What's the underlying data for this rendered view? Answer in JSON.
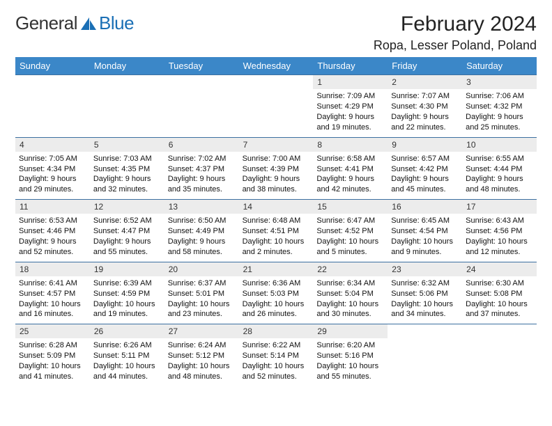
{
  "logo": {
    "text_general": "General",
    "text_blue": "Blue",
    "sail_color": "#1a6fb5"
  },
  "month_title": "February 2024",
  "location": "Ropa, Lesser Poland, Poland",
  "colors": {
    "header_bg": "#3b87c8",
    "daynum_bg": "#ececec",
    "rule": "#3b6fa0"
  },
  "day_names": [
    "Sunday",
    "Monday",
    "Tuesday",
    "Wednesday",
    "Thursday",
    "Friday",
    "Saturday"
  ],
  "weeks": [
    [
      {
        "empty": true
      },
      {
        "empty": true
      },
      {
        "empty": true
      },
      {
        "empty": true
      },
      {
        "day": "1",
        "sunrise": "Sunrise: 7:09 AM",
        "sunset": "Sunset: 4:29 PM",
        "daylight": "Daylight: 9 hours and 19 minutes."
      },
      {
        "day": "2",
        "sunrise": "Sunrise: 7:07 AM",
        "sunset": "Sunset: 4:30 PM",
        "daylight": "Daylight: 9 hours and 22 minutes."
      },
      {
        "day": "3",
        "sunrise": "Sunrise: 7:06 AM",
        "sunset": "Sunset: 4:32 PM",
        "daylight": "Daylight: 9 hours and 25 minutes."
      }
    ],
    [
      {
        "day": "4",
        "sunrise": "Sunrise: 7:05 AM",
        "sunset": "Sunset: 4:34 PM",
        "daylight": "Daylight: 9 hours and 29 minutes."
      },
      {
        "day": "5",
        "sunrise": "Sunrise: 7:03 AM",
        "sunset": "Sunset: 4:35 PM",
        "daylight": "Daylight: 9 hours and 32 minutes."
      },
      {
        "day": "6",
        "sunrise": "Sunrise: 7:02 AM",
        "sunset": "Sunset: 4:37 PM",
        "daylight": "Daylight: 9 hours and 35 minutes."
      },
      {
        "day": "7",
        "sunrise": "Sunrise: 7:00 AM",
        "sunset": "Sunset: 4:39 PM",
        "daylight": "Daylight: 9 hours and 38 minutes."
      },
      {
        "day": "8",
        "sunrise": "Sunrise: 6:58 AM",
        "sunset": "Sunset: 4:41 PM",
        "daylight": "Daylight: 9 hours and 42 minutes."
      },
      {
        "day": "9",
        "sunrise": "Sunrise: 6:57 AM",
        "sunset": "Sunset: 4:42 PM",
        "daylight": "Daylight: 9 hours and 45 minutes."
      },
      {
        "day": "10",
        "sunrise": "Sunrise: 6:55 AM",
        "sunset": "Sunset: 4:44 PM",
        "daylight": "Daylight: 9 hours and 48 minutes."
      }
    ],
    [
      {
        "day": "11",
        "sunrise": "Sunrise: 6:53 AM",
        "sunset": "Sunset: 4:46 PM",
        "daylight": "Daylight: 9 hours and 52 minutes."
      },
      {
        "day": "12",
        "sunrise": "Sunrise: 6:52 AM",
        "sunset": "Sunset: 4:47 PM",
        "daylight": "Daylight: 9 hours and 55 minutes."
      },
      {
        "day": "13",
        "sunrise": "Sunrise: 6:50 AM",
        "sunset": "Sunset: 4:49 PM",
        "daylight": "Daylight: 9 hours and 58 minutes."
      },
      {
        "day": "14",
        "sunrise": "Sunrise: 6:48 AM",
        "sunset": "Sunset: 4:51 PM",
        "daylight": "Daylight: 10 hours and 2 minutes."
      },
      {
        "day": "15",
        "sunrise": "Sunrise: 6:47 AM",
        "sunset": "Sunset: 4:52 PM",
        "daylight": "Daylight: 10 hours and 5 minutes."
      },
      {
        "day": "16",
        "sunrise": "Sunrise: 6:45 AM",
        "sunset": "Sunset: 4:54 PM",
        "daylight": "Daylight: 10 hours and 9 minutes."
      },
      {
        "day": "17",
        "sunrise": "Sunrise: 6:43 AM",
        "sunset": "Sunset: 4:56 PM",
        "daylight": "Daylight: 10 hours and 12 minutes."
      }
    ],
    [
      {
        "day": "18",
        "sunrise": "Sunrise: 6:41 AM",
        "sunset": "Sunset: 4:57 PM",
        "daylight": "Daylight: 10 hours and 16 minutes."
      },
      {
        "day": "19",
        "sunrise": "Sunrise: 6:39 AM",
        "sunset": "Sunset: 4:59 PM",
        "daylight": "Daylight: 10 hours and 19 minutes."
      },
      {
        "day": "20",
        "sunrise": "Sunrise: 6:37 AM",
        "sunset": "Sunset: 5:01 PM",
        "daylight": "Daylight: 10 hours and 23 minutes."
      },
      {
        "day": "21",
        "sunrise": "Sunrise: 6:36 AM",
        "sunset": "Sunset: 5:03 PM",
        "daylight": "Daylight: 10 hours and 26 minutes."
      },
      {
        "day": "22",
        "sunrise": "Sunrise: 6:34 AM",
        "sunset": "Sunset: 5:04 PM",
        "daylight": "Daylight: 10 hours and 30 minutes."
      },
      {
        "day": "23",
        "sunrise": "Sunrise: 6:32 AM",
        "sunset": "Sunset: 5:06 PM",
        "daylight": "Daylight: 10 hours and 34 minutes."
      },
      {
        "day": "24",
        "sunrise": "Sunrise: 6:30 AM",
        "sunset": "Sunset: 5:08 PM",
        "daylight": "Daylight: 10 hours and 37 minutes."
      }
    ],
    [
      {
        "day": "25",
        "sunrise": "Sunrise: 6:28 AM",
        "sunset": "Sunset: 5:09 PM",
        "daylight": "Daylight: 10 hours and 41 minutes."
      },
      {
        "day": "26",
        "sunrise": "Sunrise: 6:26 AM",
        "sunset": "Sunset: 5:11 PM",
        "daylight": "Daylight: 10 hours and 44 minutes."
      },
      {
        "day": "27",
        "sunrise": "Sunrise: 6:24 AM",
        "sunset": "Sunset: 5:12 PM",
        "daylight": "Daylight: 10 hours and 48 minutes."
      },
      {
        "day": "28",
        "sunrise": "Sunrise: 6:22 AM",
        "sunset": "Sunset: 5:14 PM",
        "daylight": "Daylight: 10 hours and 52 minutes."
      },
      {
        "day": "29",
        "sunrise": "Sunrise: 6:20 AM",
        "sunset": "Sunset: 5:16 PM",
        "daylight": "Daylight: 10 hours and 55 minutes."
      },
      {
        "empty": true
      },
      {
        "empty": true
      }
    ]
  ]
}
